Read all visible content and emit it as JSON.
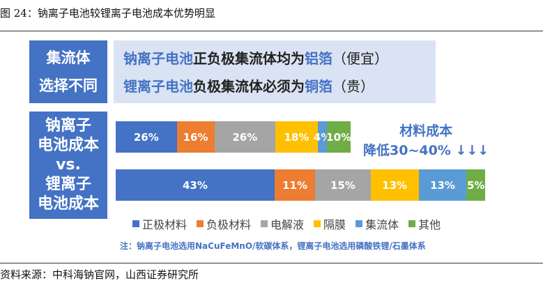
{
  "caption": "图 24：钠离子电池较锂离子电池成本优势明显",
  "left_box_top": {
    "line1": "集流体",
    "line2": "选择不同"
  },
  "left_box_bottom": {
    "line1": "钠离子",
    "line2": "电池成本",
    "line3": "vs.",
    "line4": "锂离子",
    "line5": "电池成本"
  },
  "note_panel": {
    "line1_hl": "钠离子电池",
    "line1_mid": "正负极集流体均为",
    "line1_hl2": "铝箔",
    "line1_tail": "（便宜）",
    "line2_hl": "锂离子电池",
    "line2_mid": "负极集流体必须为",
    "line2_hl2": "铜箔",
    "line2_tail": "（贵）"
  },
  "cost_note": {
    "line1": "材料成本",
    "line2": "降低30~40% ↓↓↓"
  },
  "footnote": "注：钠离子电池选用NaCuFeMnO/软碳体系，锂离子电池选用磷酸铁锂/石墨体系",
  "source": "资料来源：中科海钠官网，山西证券研究所",
  "chart_data": {
    "type": "bar",
    "orientation": "horizontal-stacked",
    "categories": [
      "钠离子电池成本",
      "锂离子电池成本"
    ],
    "series": [
      {
        "name": "正极材料",
        "color": "#4472c4",
        "values": [
          26,
          43
        ],
        "labels": [
          "26%",
          "43%"
        ]
      },
      {
        "name": "负极材料",
        "color": "#ed7d31",
        "values": [
          16,
          11
        ],
        "labels": [
          "16%",
          "11%"
        ]
      },
      {
        "name": "电解液",
        "color": "#a5a5a5",
        "values": [
          26,
          15
        ],
        "labels": [
          "26%",
          "15%"
        ]
      },
      {
        "name": "隔膜",
        "color": "#ffc000",
        "values": [
          18,
          13
        ],
        "labels": [
          "18%",
          "13%"
        ]
      },
      {
        "name": "集流体",
        "color": "#5b9bd5",
        "values": [
          4,
          13
        ],
        "labels": [
          "4%",
          "13%"
        ]
      },
      {
        "name": "其他",
        "color": "#70ad47",
        "values": [
          10,
          5
        ],
        "labels": [
          "10%",
          "5%"
        ]
      }
    ],
    "legend_position": "bottom",
    "grid": false
  }
}
